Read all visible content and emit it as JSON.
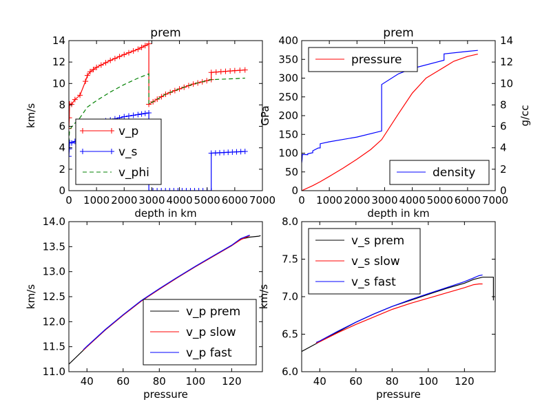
{
  "colors": {
    "red": "#ff0000",
    "blue": "#0000ff",
    "green": "#008000",
    "black": "#000000"
  },
  "chart_data": [
    {
      "id": "p1",
      "type": "line",
      "title": "prem",
      "xlabel": "depth in km",
      "ylabel": "km/s",
      "xlim": [
        0,
        7000
      ],
      "ylim": [
        0,
        14
      ],
      "xticks": [
        "0",
        "1000",
        "2000",
        "3000",
        "4000",
        "5000",
        "6000",
        "7000"
      ],
      "yticks": [
        "0",
        "2",
        "4",
        "6",
        "8",
        "10",
        "12",
        "14"
      ],
      "legend_loc": "lower-left",
      "grid": false,
      "series": [
        {
          "name": "v_p",
          "color": "red",
          "style": "solid",
          "marker": "plus",
          "x": [
            0,
            15,
            24,
            100,
            220,
            400,
            600,
            670,
            771,
            1000,
            1500,
            2000,
            2500,
            2891,
            2891,
            3500,
            4000,
            4500,
            5150,
            5150,
            5500,
            6000,
            6371
          ],
          "y": [
            5.8,
            6.8,
            8.1,
            8.05,
            8.5,
            8.9,
            10.2,
            10.75,
            11.1,
            11.5,
            12.15,
            12.7,
            13.2,
            13.7,
            8.06,
            9.0,
            9.5,
            9.95,
            10.36,
            11.03,
            11.1,
            11.2,
            11.26
          ]
        },
        {
          "name": "v_s",
          "color": "blue",
          "style": "solid",
          "marker": "plus",
          "x": [
            0,
            15,
            24,
            100,
            220,
            400,
            600,
            670,
            771,
            1000,
            1500,
            2000,
            2500,
            2891,
            2891,
            5150,
            5150,
            6371
          ],
          "y": [
            3.2,
            3.9,
            4.5,
            4.45,
            4.6,
            4.8,
            5.6,
            5.95,
            6.25,
            6.35,
            6.6,
            6.9,
            7.1,
            7.26,
            0,
            0,
            3.5,
            3.66
          ]
        },
        {
          "name": "v_phi",
          "color": "green",
          "style": "dashed",
          "marker": "none",
          "x": [
            0,
            24,
            220,
            400,
            670,
            1000,
            1500,
            2000,
            2500,
            2891,
            2891,
            3500,
            4000,
            4500,
            5150,
            5500,
            6000,
            6371
          ],
          "y": [
            4.5,
            5.7,
            6.3,
            6.8,
            7.8,
            8.4,
            9.2,
            9.9,
            10.5,
            10.9,
            8.06,
            9.0,
            9.5,
            9.95,
            10.36,
            10.4,
            10.45,
            10.5
          ]
        }
      ]
    },
    {
      "id": "p2",
      "type": "line",
      "title": "prem",
      "xlabel": "depth in km",
      "ylabel": "GPa",
      "ylabel_right": "g/cc",
      "xlim": [
        0,
        7000
      ],
      "ylim": [
        0,
        400
      ],
      "ylim_right": [
        0,
        14
      ],
      "xticks": [
        "0",
        "1000",
        "2000",
        "3000",
        "4000",
        "5000",
        "6000",
        "7000"
      ],
      "yticks": [
        "0",
        "50",
        "100",
        "150",
        "200",
        "250",
        "300",
        "350",
        "400"
      ],
      "yticks_right": [
        "0",
        "2",
        "4",
        "6",
        "8",
        "10",
        "12",
        "14"
      ],
      "legend_loc": "upper-left",
      "legend_right_loc": "lower-right",
      "grid": false,
      "series": [
        {
          "name": "pressure",
          "color": "red",
          "style": "solid",
          "axis": "left",
          "x": [
            0,
            400,
            670,
            1000,
            1500,
            2000,
            2500,
            2891,
            3500,
            4000,
            4500,
            5150,
            5500,
            6000,
            6371
          ],
          "y": [
            0,
            13.4,
            23.8,
            38,
            60,
            84,
            110,
            136,
            205,
            260,
            300,
            329,
            345,
            358,
            364
          ]
        },
        {
          "name": "density",
          "color": "blue",
          "style": "solid",
          "axis": "right",
          "x": [
            0,
            15,
            24,
            100,
            220,
            220,
            400,
            400,
            600,
            670,
            670,
            1000,
            2000,
            2891,
            2891,
            3500,
            4000,
            5150,
            5150,
            6000,
            6371
          ],
          "y": [
            2.6,
            2.9,
            3.38,
            3.37,
            3.36,
            3.44,
            3.54,
            3.72,
            3.98,
            3.99,
            4.38,
            4.56,
            5.0,
            5.57,
            9.9,
            10.9,
            11.4,
            12.17,
            12.76,
            13.0,
            13.09
          ]
        }
      ]
    },
    {
      "id": "p3",
      "type": "line",
      "title": "",
      "xlabel": "pressure",
      "ylabel": "km/s",
      "xlim": [
        30,
        137
      ],
      "ylim": [
        11.0,
        14.0
      ],
      "xticks": [
        "40",
        "60",
        "80",
        "100",
        "120"
      ],
      "xtick_values": [
        40,
        60,
        80,
        100,
        120
      ],
      "yticks": [
        "11.0",
        "11.5",
        "12.0",
        "12.5",
        "13.0",
        "13.5",
        "14.0"
      ],
      "legend_loc": "lower-right",
      "grid": false,
      "series": [
        {
          "name": "v_p prem",
          "color": "black",
          "style": "solid",
          "x": [
            30,
            40,
            50,
            60,
            70,
            80,
            90,
            100,
            110,
            120,
            125,
            130,
            135,
            136
          ],
          "y": [
            11.15,
            11.5,
            11.83,
            12.13,
            12.41,
            12.65,
            12.88,
            13.1,
            13.31,
            13.52,
            13.65,
            13.69,
            13.71,
            13.72
          ]
        },
        {
          "name": "v_p slow",
          "color": "red",
          "style": "solid",
          "x": [
            38,
            40,
            50,
            60,
            70,
            80,
            90,
            100,
            110,
            120,
            125,
            130
          ],
          "y": [
            11.43,
            11.5,
            11.83,
            12.13,
            12.41,
            12.65,
            12.88,
            13.1,
            13.31,
            13.52,
            13.64,
            13.72
          ]
        },
        {
          "name": "v_p fast",
          "color": "blue",
          "style": "solid",
          "x": [
            38,
            40,
            50,
            60,
            70,
            80,
            90,
            100,
            110,
            120,
            125,
            130
          ],
          "y": [
            11.44,
            11.51,
            11.84,
            12.14,
            12.42,
            12.66,
            12.89,
            13.11,
            13.32,
            13.53,
            13.66,
            13.73
          ]
        }
      ]
    },
    {
      "id": "p4",
      "type": "line",
      "title": "",
      "xlabel": "pressure",
      "ylabel": "km/s",
      "xlim": [
        30,
        137
      ],
      "ylim": [
        6.0,
        8.0
      ],
      "xticks": [
        "40",
        "60",
        "80",
        "100",
        "120"
      ],
      "xtick_values": [
        40,
        60,
        80,
        100,
        120
      ],
      "yticks": [
        "6.0",
        "6.5",
        "7.0",
        "7.5",
        "8.0"
      ],
      "legend_loc": "upper-left",
      "grid": false,
      "series": [
        {
          "name": "v_s prem",
          "color": "black",
          "style": "solid",
          "x": [
            30,
            40,
            50,
            60,
            70,
            80,
            90,
            100,
            110,
            120,
            125,
            130,
            136,
            136
          ],
          "y": [
            6.27,
            6.4,
            6.53,
            6.66,
            6.77,
            6.87,
            6.95,
            7.03,
            7.11,
            7.18,
            7.23,
            7.26,
            7.26,
            6.95
          ]
        },
        {
          "name": "v_s slow",
          "color": "red",
          "style": "solid",
          "x": [
            38,
            40,
            50,
            60,
            70,
            80,
            90,
            100,
            110,
            120,
            125,
            128,
            130
          ],
          "y": [
            6.38,
            6.4,
            6.52,
            6.63,
            6.73,
            6.83,
            6.91,
            6.98,
            7.05,
            7.12,
            7.16,
            7.17,
            7.17
          ]
        },
        {
          "name": "v_s fast",
          "color": "blue",
          "style": "solid",
          "x": [
            38,
            40,
            50,
            60,
            70,
            80,
            90,
            100,
            110,
            120,
            125,
            128,
            130
          ],
          "y": [
            6.39,
            6.41,
            6.54,
            6.66,
            6.77,
            6.87,
            6.96,
            7.04,
            7.12,
            7.2,
            7.25,
            7.28,
            7.29
          ]
        }
      ]
    }
  ]
}
